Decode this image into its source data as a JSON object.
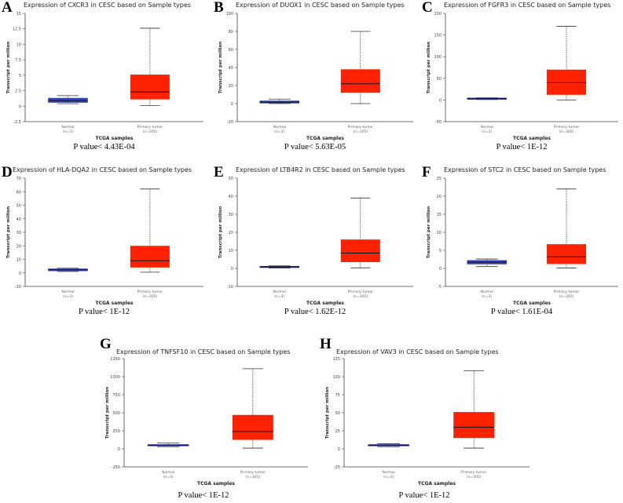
{
  "colors": {
    "normal": "#3344cc",
    "tumor": "#ff2200",
    "median": "#111111"
  },
  "chart_data": [
    {
      "type": "box",
      "letter": "A",
      "title": "Expression of CXCR3 in CESC based on Sample types",
      "ylabel": "Transcript per million",
      "xlabel": "TCGA samples",
      "ylim": [
        -2.5,
        15
      ],
      "yticks": [
        -2.5,
        0,
        2.5,
        5,
        7.5,
        10,
        12.5,
        15
      ],
      "categories": [
        "Normal",
        "Primary tumor"
      ],
      "n": [
        "(n=3)",
        "(n=305)"
      ],
      "boxes": [
        {
          "min": 0.4,
          "q1": 0.6,
          "median": 0.9,
          "q3": 1.3,
          "max": 1.7
        },
        {
          "min": 0.1,
          "q1": 1.1,
          "median": 2.3,
          "q3": 5.1,
          "max": 12.6
        }
      ],
      "pvalue": "P value< 4.43E-04"
    },
    {
      "type": "box",
      "letter": "B",
      "title": "Expression of DUOX1 in CESC based on Sample types",
      "ylabel": "Transcript per million",
      "xlabel": "TCGA samples",
      "ylim": [
        -20,
        100
      ],
      "yticks": [
        -20,
        0,
        20,
        40,
        60,
        80,
        100
      ],
      "categories": [
        "Normal",
        "Primary tumor"
      ],
      "n": [
        "(n=3)",
        "(n=305)"
      ],
      "boxes": [
        {
          "min": 0,
          "q1": 0.5,
          "median": 1.5,
          "q3": 3,
          "max": 5
        },
        {
          "min": 0,
          "q1": 12,
          "median": 22,
          "q3": 38,
          "max": 80
        }
      ],
      "pvalue": "P value< 5.63E-05"
    },
    {
      "type": "box",
      "letter": "C",
      "title": "Expression of FGFR3 in CESC based on Sample types",
      "ylabel": "Transcript per million",
      "xlabel": "TCGA samples",
      "ylim": [
        -50,
        200
      ],
      "yticks": [
        -50,
        0,
        50,
        100,
        150,
        200
      ],
      "categories": [
        "Normal",
        "Primary tumor"
      ],
      "n": [
        "(n=3)",
        "(n=305)"
      ],
      "boxes": [
        {
          "min": 1,
          "q1": 2,
          "median": 3,
          "q3": 4,
          "max": 5
        },
        {
          "min": 0,
          "q1": 12,
          "median": 40,
          "q3": 70,
          "max": 170
        }
      ],
      "pvalue": "P value< 1E-12"
    },
    {
      "type": "box",
      "letter": "D",
      "title": "Expression of HLA-DQA2 in CESC based on Sample types",
      "ylabel": "Transcript per million",
      "xlabel": "TCGA samples",
      "ylim": [
        -10,
        70
      ],
      "yticks": [
        -10,
        0,
        10,
        20,
        30,
        40,
        50,
        60,
        70
      ],
      "categories": [
        "Normal",
        "Primary tumor"
      ],
      "n": [
        "(n=3)",
        "(n=305)"
      ],
      "boxes": [
        {
          "min": 1,
          "q1": 1.5,
          "median": 2.3,
          "q3": 3,
          "max": 3.5
        },
        {
          "min": 0.5,
          "q1": 4,
          "median": 9,
          "q3": 20,
          "max": 62
        }
      ],
      "pvalue": "P value< 1E-12"
    },
    {
      "type": "box",
      "letter": "E",
      "title": "Expression of LTB4R2 in CESC based on Sample types",
      "ylabel": "Transcript per million",
      "xlabel": "TCGA samples",
      "ylim": [
        -10,
        50
      ],
      "yticks": [
        -10,
        0,
        10,
        20,
        30,
        40,
        50
      ],
      "categories": [
        "Normal",
        "Primary tumor"
      ],
      "n": [
        "(n=3)",
        "(n=305)"
      ],
      "boxes": [
        {
          "min": 0.2,
          "q1": 0.4,
          "median": 0.8,
          "q3": 1.2,
          "max": 1.4
        },
        {
          "min": 0.3,
          "q1": 3.5,
          "median": 8.5,
          "q3": 16,
          "max": 39
        }
      ],
      "pvalue": "P value< 1.62E-12"
    },
    {
      "type": "box",
      "letter": "F",
      "title": "Expression of STC2 in CESC based on Sample types",
      "ylabel": "Transcript per million",
      "xlabel": "TCGA samples",
      "ylim": [
        -5,
        25
      ],
      "yticks": [
        -5,
        0,
        5,
        10,
        15,
        20,
        25
      ],
      "categories": [
        "Normal",
        "Primary tumor"
      ],
      "n": [
        "(n=3)",
        "(n=305)"
      ],
      "boxes": [
        {
          "min": 0.5,
          "q1": 1.2,
          "median": 1.7,
          "q3": 2.2,
          "max": 2.6
        },
        {
          "min": 0.1,
          "q1": 1.2,
          "median": 3.2,
          "q3": 6.7,
          "max": 22
        }
      ],
      "pvalue": "P value< 1.61E-04"
    },
    {
      "type": "box",
      "letter": "G",
      "title": "Expression of TNFSF10 in CESC based on Sample types",
      "ylabel": "Transcript per million",
      "xlabel": "TCGA samples",
      "ylim": [
        -250,
        1250
      ],
      "yticks": [
        -250,
        0,
        250,
        500,
        750,
        1000,
        1250
      ],
      "categories": [
        "Normal",
        "Primary tumor"
      ],
      "n": [
        "(n=3)",
        "(n=305)"
      ],
      "boxes": [
        {
          "min": 30,
          "q1": 40,
          "median": 50,
          "q3": 60,
          "max": 80
        },
        {
          "min": 10,
          "q1": 125,
          "median": 240,
          "q3": 470,
          "max": 1110
        }
      ],
      "pvalue": "P value< 1E-12"
    },
    {
      "type": "box",
      "letter": "H",
      "title": "Expression of VAV3 in CESC based on Sample types",
      "ylabel": "Transcript per million",
      "xlabel": "TCGA samples",
      "ylim": [
        -25,
        125
      ],
      "yticks": [
        -25,
        0,
        25,
        50,
        75,
        100,
        125
      ],
      "categories": [
        "Normal",
        "Primary tumor"
      ],
      "n": [
        "(n=3)",
        "(n=305)"
      ],
      "boxes": [
        {
          "min": 3,
          "q1": 4,
          "median": 5,
          "q3": 6,
          "max": 7
        },
        {
          "min": 1,
          "q1": 15,
          "median": 30,
          "q3": 51,
          "max": 108
        }
      ],
      "pvalue": "P value< 1E-12"
    }
  ]
}
